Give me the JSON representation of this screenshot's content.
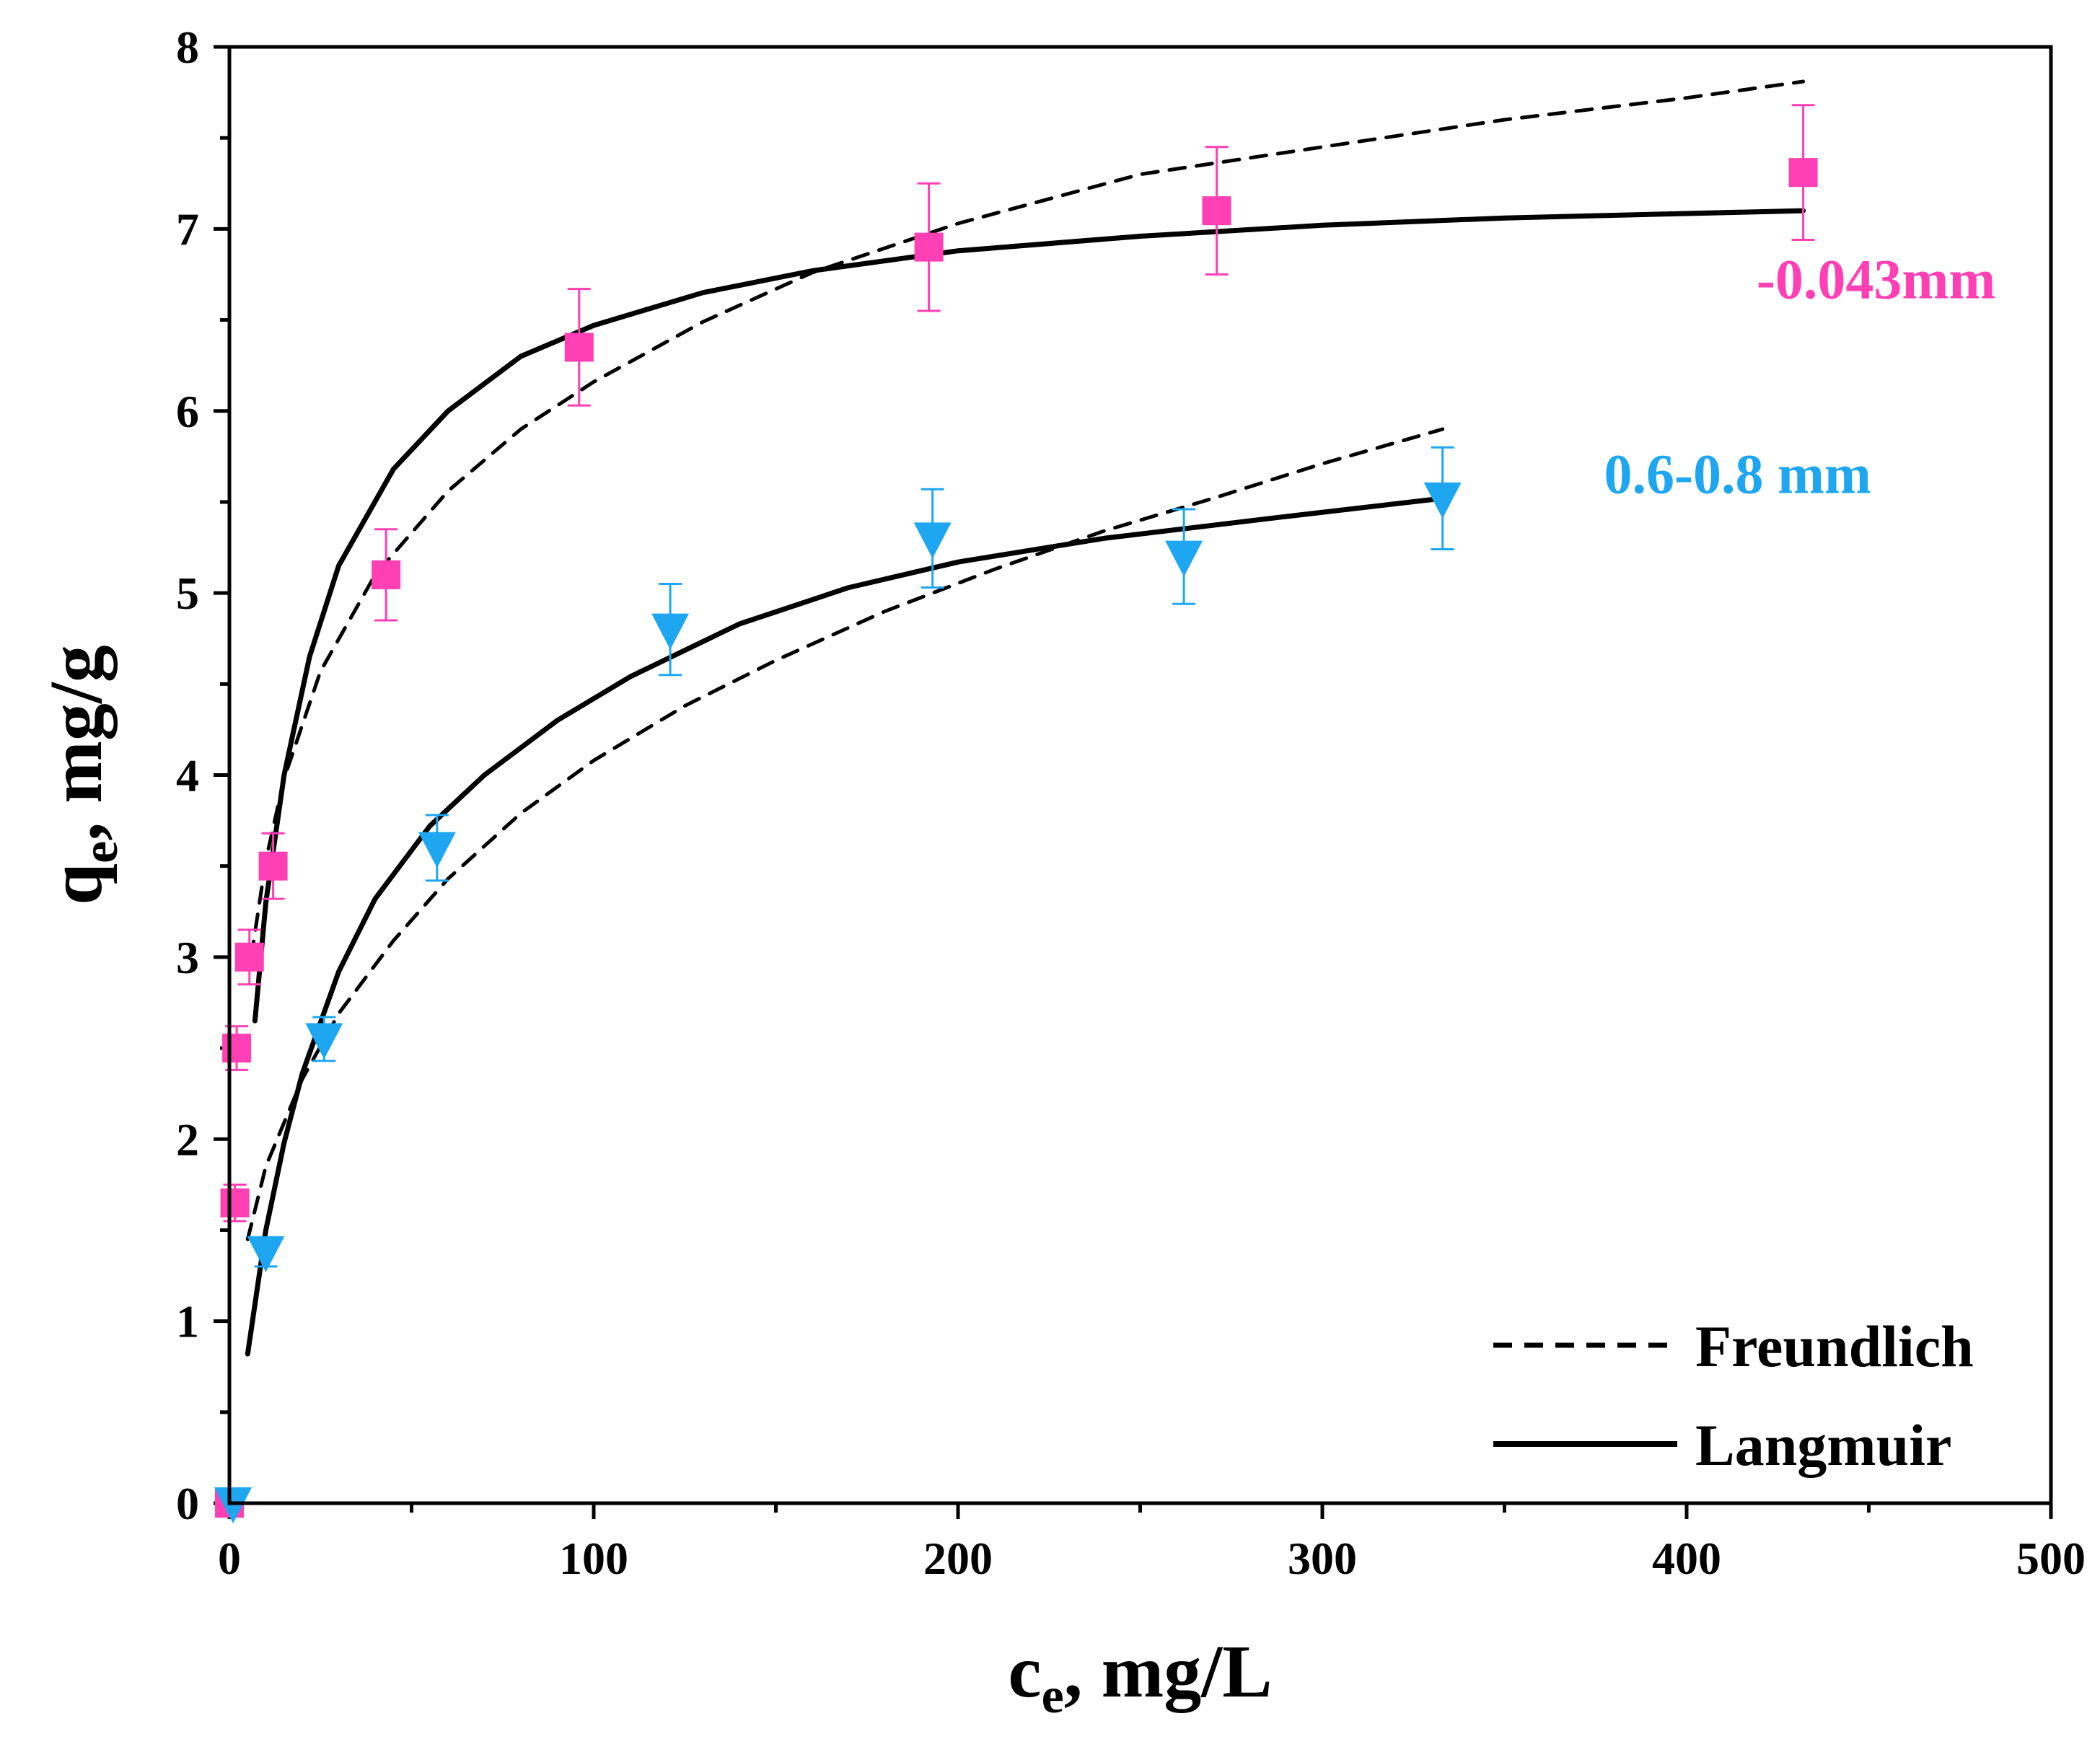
{
  "chart_data": {
    "type": "scatter",
    "xlabel_main": "c",
    "xlabel_sub": "e",
    "xlabel_rest": ", mg/L",
    "ylabel_main": "q",
    "ylabel_sub": "e",
    "ylabel_rest": ", mg/g",
    "xlim": [
      0,
      500
    ],
    "ylim": [
      0,
      8
    ],
    "x_ticks": [
      "0",
      "100",
      "200",
      "300",
      "400",
      "500"
    ],
    "y_ticks": [
      "0",
      "1",
      "2",
      "3",
      "4",
      "5",
      "6",
      "7",
      "8"
    ],
    "grid": false,
    "legend_position": "bottom-right",
    "legend": [
      {
        "name": "Freundlich",
        "style": "dashed"
      },
      {
        "name": "Langmuir",
        "style": "solid"
      }
    ],
    "series": [
      {
        "name": "-0.043mm",
        "color": "#ff3fb4",
        "marker": "square",
        "points": [
          {
            "x": 0,
            "y": 0,
            "err": 0
          },
          {
            "x": 1.5,
            "y": 1.65,
            "err": 0.1
          },
          {
            "x": 2,
            "y": 2.5,
            "err": 0.12
          },
          {
            "x": 5.5,
            "y": 3.0,
            "err": 0.15
          },
          {
            "x": 12,
            "y": 3.5,
            "err": 0.18
          },
          {
            "x": 43,
            "y": 5.1,
            "err": 0.25
          },
          {
            "x": 96,
            "y": 6.35,
            "err": 0.32
          },
          {
            "x": 192,
            "y": 6.9,
            "err": 0.35
          },
          {
            "x": 271,
            "y": 7.1,
            "err": 0.35
          },
          {
            "x": 432,
            "y": 7.31,
            "err": 0.37
          }
        ],
        "freundlich_fit": [
          {
            "x": 6,
            "y": 3.0
          },
          {
            "x": 10,
            "y": 3.53
          },
          {
            "x": 15,
            "y": 3.98
          },
          {
            "x": 25,
            "y": 4.57
          },
          {
            "x": 40,
            "y": 5.1
          },
          {
            "x": 60,
            "y": 5.56
          },
          {
            "x": 80,
            "y": 5.9
          },
          {
            "x": 100,
            "y": 6.16
          },
          {
            "x": 130,
            "y": 6.49
          },
          {
            "x": 160,
            "y": 6.76
          },
          {
            "x": 200,
            "y": 7.03
          },
          {
            "x": 250,
            "y": 7.3
          },
          {
            "x": 300,
            "y": 7.45
          },
          {
            "x": 350,
            "y": 7.6
          },
          {
            "x": 400,
            "y": 7.72
          },
          {
            "x": 432,
            "y": 7.81
          }
        ],
        "langmuir_fit": [
          {
            "x": 7,
            "y": 2.65
          },
          {
            "x": 10,
            "y": 3.3
          },
          {
            "x": 15,
            "y": 4.0
          },
          {
            "x": 22,
            "y": 4.65
          },
          {
            "x": 30,
            "y": 5.15
          },
          {
            "x": 45,
            "y": 5.68
          },
          {
            "x": 60,
            "y": 6.0
          },
          {
            "x": 80,
            "y": 6.3
          },
          {
            "x": 100,
            "y": 6.47
          },
          {
            "x": 130,
            "y": 6.65
          },
          {
            "x": 160,
            "y": 6.77
          },
          {
            "x": 200,
            "y": 6.88
          },
          {
            "x": 250,
            "y": 6.96
          },
          {
            "x": 300,
            "y": 7.02
          },
          {
            "x": 350,
            "y": 7.06
          },
          {
            "x": 432,
            "y": 7.1
          }
        ]
      },
      {
        "name": "0.6-0.8 mm",
        "color": "#1ea7f0",
        "marker": "triangle-down",
        "points": [
          {
            "x": 1,
            "y": 0,
            "err": 0
          },
          {
            "x": 10,
            "y": 1.38,
            "err": 0.08
          },
          {
            "x": 26,
            "y": 2.55,
            "err": 0.12
          },
          {
            "x": 57,
            "y": 3.6,
            "err": 0.18
          },
          {
            "x": 121,
            "y": 4.8,
            "err": 0.25
          },
          {
            "x": 193,
            "y": 5.3,
            "err": 0.27
          },
          {
            "x": 262,
            "y": 5.2,
            "err": 0.26
          },
          {
            "x": 333,
            "y": 5.52,
            "err": 0.28
          }
        ],
        "freundlich_fit": [
          {
            "x": 5,
            "y": 1.45
          },
          {
            "x": 10,
            "y": 1.85
          },
          {
            "x": 20,
            "y": 2.33
          },
          {
            "x": 30,
            "y": 2.69
          },
          {
            "x": 45,
            "y": 3.09
          },
          {
            "x": 60,
            "y": 3.43
          },
          {
            "x": 80,
            "y": 3.79
          },
          {
            "x": 100,
            "y": 4.08
          },
          {
            "x": 125,
            "y": 4.38
          },
          {
            "x": 150,
            "y": 4.63
          },
          {
            "x": 180,
            "y": 4.9
          },
          {
            "x": 210,
            "y": 5.13
          },
          {
            "x": 240,
            "y": 5.34
          },
          {
            "x": 270,
            "y": 5.52
          },
          {
            "x": 300,
            "y": 5.71
          },
          {
            "x": 333,
            "y": 5.9
          }
        ],
        "langmuir_fit": [
          {
            "x": 5,
            "y": 0.82
          },
          {
            "x": 10,
            "y": 1.5
          },
          {
            "x": 15,
            "y": 1.98
          },
          {
            "x": 20,
            "y": 2.36
          },
          {
            "x": 30,
            "y": 2.92
          },
          {
            "x": 40,
            "y": 3.32
          },
          {
            "x": 55,
            "y": 3.72
          },
          {
            "x": 70,
            "y": 4.0
          },
          {
            "x": 90,
            "y": 4.3
          },
          {
            "x": 110,
            "y": 4.54
          },
          {
            "x": 140,
            "y": 4.83
          },
          {
            "x": 170,
            "y": 5.03
          },
          {
            "x": 200,
            "y": 5.17
          },
          {
            "x": 240,
            "y": 5.3
          },
          {
            "x": 290,
            "y": 5.42
          },
          {
            "x": 333,
            "y": 5.52
          }
        ]
      }
    ]
  }
}
